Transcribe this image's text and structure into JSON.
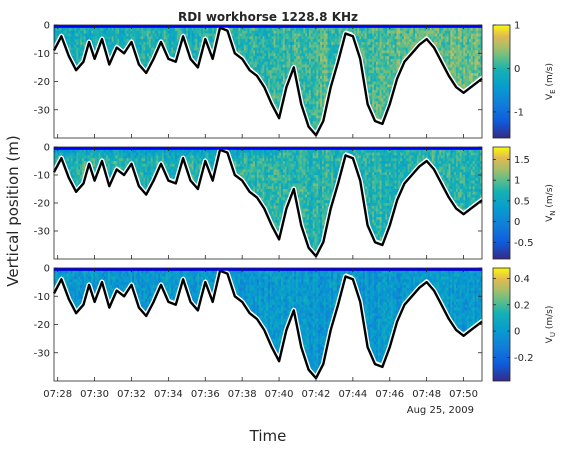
{
  "chart_data": {
    "type": "heatmap",
    "title": "RDI workhorse 1228.8 KHz",
    "xlabel": "Time",
    "ylabel": "Vertical position (m)",
    "date_label": "Aug 25, 2009",
    "x_ticks": [
      "07:28",
      "07:30",
      "07:32",
      "07:34",
      "07:36",
      "07:38",
      "07:40",
      "07:42",
      "07:44",
      "07:46",
      "07:48",
      "07:50"
    ],
    "x_tick_minutes": [
      0,
      2,
      4,
      6,
      8,
      10,
      12,
      14,
      16,
      18,
      20,
      22
    ],
    "x_range_minutes": [
      -0.2,
      23.0
    ],
    "y_range": [
      -40,
      0
    ],
    "y_ticks": [
      0,
      -10,
      -20,
      -30
    ],
    "y_tick_labels": [
      "0",
      "-10",
      "-20",
      "-30"
    ],
    "colormap": "parula",
    "seabed_profile": {
      "minutes": [
        -0.2,
        0.2,
        0.6,
        1.0,
        1.4,
        1.7,
        2.0,
        2.4,
        2.8,
        3.2,
        3.6,
        4.0,
        4.4,
        4.8,
        5.2,
        5.6,
        6.0,
        6.4,
        6.8,
        7.2,
        7.6,
        8.0,
        8.4,
        8.8,
        9.2,
        9.6,
        10.0,
        10.4,
        10.8,
        11.2,
        11.6,
        12.0,
        12.4,
        12.8,
        13.2,
        13.6,
        14.0,
        14.4,
        14.8,
        15.2,
        15.6,
        16.0,
        16.4,
        16.8,
        17.2,
        17.6,
        18.0,
        18.4,
        18.8,
        19.2,
        19.6,
        20.0,
        20.4,
        20.8,
        21.2,
        21.6,
        22.0,
        22.4,
        23.0
      ],
      "depth_m": [
        -9,
        -4,
        -11,
        -16,
        -13,
        -6,
        -12,
        -5,
        -14,
        -8,
        -10,
        -6,
        -14,
        -17,
        -12,
        -6,
        -12,
        -13,
        -4,
        -12,
        -15,
        -5,
        -12,
        -1,
        -2,
        -10,
        -12,
        -16,
        -18,
        -22,
        -28,
        -33,
        -22,
        -15,
        -28,
        -36,
        -39,
        -34,
        -22,
        -13,
        -3,
        -4,
        -12,
        -28,
        -34,
        -35,
        -28,
        -19,
        -13,
        -10,
        -7,
        -5,
        -8,
        -13,
        -18,
        -22,
        -24,
        -22,
        -19
      ]
    },
    "panels": [
      {
        "name": "V_E",
        "colorbar_label": "V",
        "colorbar_subscript": "E",
        "colorbar_unit": " (m/s)",
        "clim": [
          -1.6,
          1.0
        ],
        "colorbar_ticks": [
          1,
          0,
          -1
        ],
        "colorbar_tick_labels": [
          "1",
          "0",
          "-1"
        ],
        "typical_value": 0.0,
        "trend_per_min": 0.018
      },
      {
        "name": "V_N",
        "colorbar_label": "V",
        "colorbar_subscript": "N",
        "colorbar_unit": " (m/s)",
        "clim": [
          -0.9,
          1.8
        ],
        "colorbar_ticks": [
          1.5,
          1,
          0.5,
          0,
          -0.5
        ],
        "colorbar_tick_labels": [
          "1.5",
          "1",
          "0.5",
          "0",
          "-0.5"
        ],
        "typical_value": 0.75,
        "trend_per_min": 0.0
      },
      {
        "name": "V_U",
        "colorbar_label": "V",
        "colorbar_subscript": "U",
        "colorbar_unit": " (m/s)",
        "clim": [
          -0.38,
          0.48
        ],
        "colorbar_ticks": [
          0.4,
          0.2,
          0,
          -0.2
        ],
        "colorbar_tick_labels": [
          "0.4",
          "0.2",
          "0",
          "-0.2"
        ],
        "typical_value": 0.0,
        "trend_per_min": 0.0
      }
    ]
  }
}
